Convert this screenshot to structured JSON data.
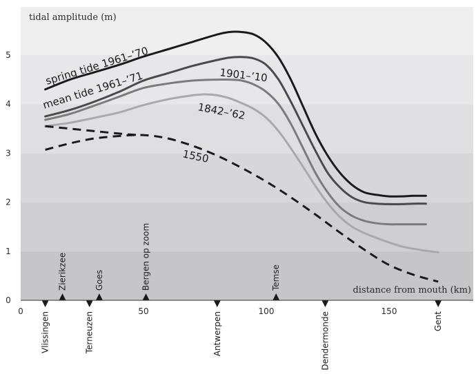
{
  "chart_data": {
    "type": "line",
    "title": "",
    "ylabel": "tidal amplitude (m)",
    "xlabel": "distance from mouth (km)",
    "xlim": [
      0,
      185
    ],
    "ylim": [
      0,
      6
    ],
    "x_ticks": [
      0,
      50,
      100,
      150
    ],
    "y_ticks": [
      0,
      1,
      2,
      3,
      4,
      5
    ],
    "background": "horizontal grey bands, darker toward the bottom",
    "band_colors": [
      "#c6c6c8",
      "#cfcfd1",
      "#d7d7d9",
      "#dfdfe1",
      "#e7e7e9",
      "#efeff0"
    ],
    "series": [
      {
        "name": "spring tide 1961–’70",
        "color": "#1a1a1a",
        "dash": "solid",
        "x": [
          10,
          20,
          30,
          40,
          50,
          60,
          70,
          80,
          85,
          90,
          95,
          100,
          105,
          110,
          115,
          120,
          125,
          130,
          135,
          140,
          145,
          150,
          155,
          160,
          165
        ],
        "y": [
          4.3,
          4.5,
          4.65,
          4.8,
          4.97,
          5.12,
          5.27,
          5.42,
          5.47,
          5.47,
          5.42,
          5.25,
          4.95,
          4.5,
          3.95,
          3.4,
          2.95,
          2.6,
          2.35,
          2.2,
          2.15,
          2.12,
          2.12,
          2.13,
          2.13
        ]
      },
      {
        "name": "mean tide 1961–’71",
        "color": "#4a4a4a",
        "dash": "solid",
        "x": [
          10,
          20,
          30,
          40,
          50,
          60,
          70,
          80,
          85,
          90,
          95,
          100,
          105,
          110,
          115,
          120,
          125,
          130,
          135,
          140,
          145,
          150,
          155,
          160,
          165
        ],
        "y": [
          3.75,
          3.88,
          4.05,
          4.25,
          4.48,
          4.63,
          4.78,
          4.9,
          4.95,
          4.96,
          4.93,
          4.8,
          4.5,
          4.05,
          3.55,
          3.05,
          2.6,
          2.3,
          2.1,
          2.0,
          1.97,
          1.96,
          1.96,
          1.97,
          1.97
        ]
      },
      {
        "name": "1901–’10",
        "color": "#7b7b7b",
        "dash": "solid",
        "x": [
          10,
          20,
          30,
          40,
          50,
          60,
          70,
          80,
          85,
          90,
          95,
          100,
          105,
          110,
          115,
          120,
          125,
          130,
          135,
          140,
          145,
          150,
          155,
          160,
          165
        ],
        "y": [
          3.68,
          3.8,
          3.97,
          4.15,
          4.33,
          4.42,
          4.48,
          4.5,
          4.5,
          4.48,
          4.4,
          4.25,
          4.0,
          3.6,
          3.1,
          2.6,
          2.2,
          1.9,
          1.72,
          1.62,
          1.57,
          1.55,
          1.55,
          1.55,
          1.55
        ]
      },
      {
        "name": "1842–’62",
        "color": "#a9a9a9",
        "dash": "solid",
        "x": [
          10,
          20,
          30,
          40,
          50,
          60,
          70,
          75,
          80,
          85,
          90,
          95,
          100,
          105,
          110,
          115,
          120,
          125,
          130,
          135,
          140,
          145,
          150,
          155,
          160,
          165,
          170
        ],
        "y": [
          3.55,
          3.62,
          3.72,
          3.83,
          3.98,
          4.1,
          4.18,
          4.2,
          4.18,
          4.12,
          4.02,
          3.9,
          3.72,
          3.45,
          3.1,
          2.72,
          2.33,
          1.98,
          1.7,
          1.5,
          1.37,
          1.27,
          1.18,
          1.1,
          1.05,
          1.01,
          0.98
        ]
      },
      {
        "name": "1550",
        "color": "#1a1a1a",
        "dash": "dashed",
        "x": [
          10,
          20,
          30,
          40,
          50,
          60,
          70,
          80,
          90,
          100,
          110,
          120,
          130,
          140,
          150,
          160,
          170
        ],
        "y": [
          3.07,
          3.2,
          3.3,
          3.35,
          3.37,
          3.3,
          3.15,
          2.95,
          2.7,
          2.42,
          2.1,
          1.75,
          1.38,
          1.03,
          0.72,
          0.52,
          0.38
        ]
      },
      {
        "name": "1550 (upper branch)",
        "color": "#1a1a1a",
        "dash": "dashed",
        "x": [
          10,
          20,
          30,
          40,
          48
        ],
        "y": [
          3.55,
          3.5,
          3.45,
          3.4,
          3.37
        ]
      }
    ],
    "annotations": [
      {
        "text": "spring tide 1961–’70",
        "series": 0
      },
      {
        "text": "mean tide 1961–’71",
        "series": 1
      },
      {
        "text": "1901–’10",
        "series": 2
      },
      {
        "text": "1842–’62",
        "series": 3
      },
      {
        "text": "1550",
        "series": 4
      }
    ],
    "places_below": [
      {
        "name": "Vlissingen",
        "km": 10
      },
      {
        "name": "Terneuzen",
        "km": 28
      },
      {
        "name": "Antwerpen",
        "km": 80
      },
      {
        "name": "Dendermonde",
        "km": 124
      },
      {
        "name": "Gent",
        "km": 170
      }
    ],
    "places_above": [
      {
        "name": "Zierikzee",
        "km": 17
      },
      {
        "name": "Goes",
        "km": 32
      },
      {
        "name": "Bergen op zoom",
        "km": 51
      },
      {
        "name": "Temse",
        "km": 104
      }
    ]
  }
}
